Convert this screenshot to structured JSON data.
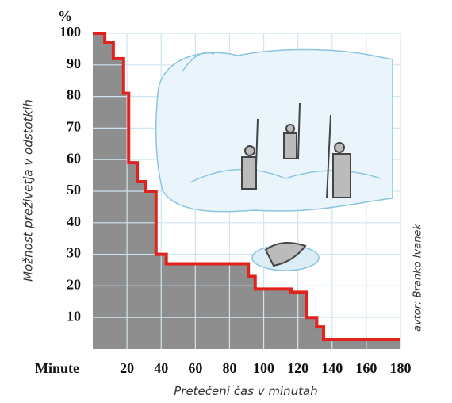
{
  "chart_data": {
    "type": "step",
    "y_unit": "%",
    "x_unit": "Minute",
    "xlabel": "Pretečeni čas v minutah",
    "ylabel": "Možnost preživetja v odstotkih",
    "credit": "avtor: Branko Ivanek",
    "x": [
      0,
      7,
      12,
      18,
      21,
      26,
      31,
      37,
      43,
      91,
      95,
      116,
      125,
      131,
      135,
      180
    ],
    "values": [
      100,
      97,
      92,
      81,
      59,
      53,
      50,
      30,
      27,
      23,
      19,
      18,
      10,
      7,
      3,
      3
    ],
    "color": "#e0231d",
    "fill": "#8e8e8e",
    "xlim": [
      0,
      180
    ],
    "ylim": [
      0,
      100
    ],
    "xticks": [
      20,
      40,
      60,
      80,
      100,
      120,
      140,
      160,
      180
    ],
    "yticks": [
      10,
      20,
      30,
      40,
      50,
      60,
      70,
      80,
      90,
      100
    ],
    "grid": true
  }
}
